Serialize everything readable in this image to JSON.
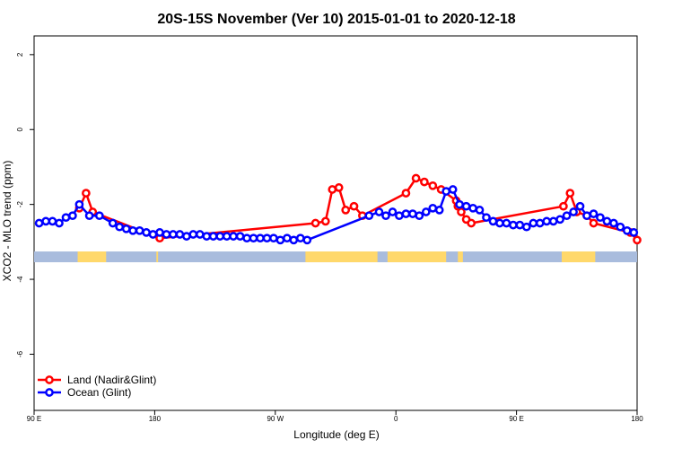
{
  "chart_data": {
    "type": "line",
    "title": "20S-15S November (Ver 10)   2015-01-01 to 2020-12-18",
    "xlabel": "Longitude (deg E)",
    "ylabel": "XCO2 - MLO trend (ppm)",
    "xlim": [
      90,
      450
    ],
    "ylim": [
      -7.5,
      2.5
    ],
    "x_ticks": [
      {
        "value": 90,
        "label": "90 E"
      },
      {
        "value": 162,
        "label": "180"
      },
      {
        "value": 234,
        "label": "90 W"
      },
      {
        "value": 306,
        "label": "0"
      },
      {
        "value": 378,
        "label": "90 E"
      },
      {
        "value": 450,
        "label": "180"
      }
    ],
    "y_ticks": [
      -6,
      -4,
      -2,
      0,
      2
    ],
    "grid": false,
    "legend_position": "bottom-left",
    "series": [
      {
        "name": "Land (Nadir&Glint)",
        "color": "#ff0000",
        "x": [
          117,
          121,
          125,
          165,
          258,
          264,
          268,
          272,
          276,
          281,
          286,
          312,
          318,
          323,
          328,
          333,
          342,
          343,
          345,
          348,
          351,
          406,
          410,
          414,
          420,
          424,
          446,
          450
        ],
        "y": [
          -2.1,
          -1.7,
          -2.2,
          -2.9,
          -2.5,
          -2.45,
          -1.6,
          -1.55,
          -2.15,
          -2.05,
          -2.3,
          -1.7,
          -1.3,
          -1.4,
          -1.5,
          -1.6,
          -1.9,
          -2.05,
          -2.2,
          -2.4,
          -2.5,
          -2.05,
          -1.7,
          -2.2,
          -2.3,
          -2.5,
          -2.75,
          -2.95
        ]
      },
      {
        "name": "Ocean (Glint)",
        "color": "#0000ff",
        "x": [
          93,
          97,
          101,
          105,
          109,
          113,
          117,
          123,
          129,
          137,
          141,
          145,
          149,
          153,
          157,
          161,
          165,
          169,
          173,
          177,
          181,
          185,
          189,
          193,
          197,
          201,
          205,
          209,
          213,
          217,
          221,
          225,
          229,
          233,
          237,
          241,
          245,
          249,
          253,
          290,
          296,
          300,
          304,
          308,
          312,
          316,
          320,
          324,
          328,
          332,
          336,
          340,
          344,
          348,
          352,
          356,
          360,
          364,
          368,
          372,
          376,
          380,
          384,
          388,
          392,
          396,
          400,
          404,
          408,
          412,
          416,
          420,
          424,
          428,
          432,
          436,
          440,
          444,
          448
        ],
        "y": [
          -2.5,
          -2.45,
          -2.45,
          -2.5,
          -2.35,
          -2.3,
          -2.0,
          -2.3,
          -2.3,
          -2.5,
          -2.6,
          -2.65,
          -2.7,
          -2.7,
          -2.75,
          -2.8,
          -2.75,
          -2.8,
          -2.8,
          -2.8,
          -2.85,
          -2.8,
          -2.8,
          -2.85,
          -2.85,
          -2.85,
          -2.85,
          -2.85,
          -2.85,
          -2.9,
          -2.9,
          -2.9,
          -2.9,
          -2.9,
          -2.95,
          -2.9,
          -2.95,
          -2.9,
          -2.95,
          -2.3,
          -2.2,
          -2.3,
          -2.2,
          -2.3,
          -2.25,
          -2.25,
          -2.3,
          -2.2,
          -2.1,
          -2.15,
          -1.65,
          -1.6,
          -2.0,
          -2.05,
          -2.1,
          -2.15,
          -2.35,
          -2.45,
          -2.5,
          -2.5,
          -2.55,
          -2.55,
          -2.6,
          -2.5,
          -2.5,
          -2.45,
          -2.45,
          -2.4,
          -2.3,
          -2.2,
          -2.05,
          -2.3,
          -2.25,
          -2.35,
          -2.45,
          -2.5,
          -2.6,
          -2.7,
          -2.75
        ]
      }
    ],
    "surface_bar": {
      "y": -3.4,
      "ocean_color": "#a9bcdd",
      "land_color": "#ffd86b",
      "land_ranges": [
        [
          116,
          133
        ],
        [
          163,
          164
        ],
        [
          252,
          295
        ],
        [
          301,
          336
        ],
        [
          343,
          346
        ],
        [
          405,
          425
        ]
      ]
    }
  }
}
